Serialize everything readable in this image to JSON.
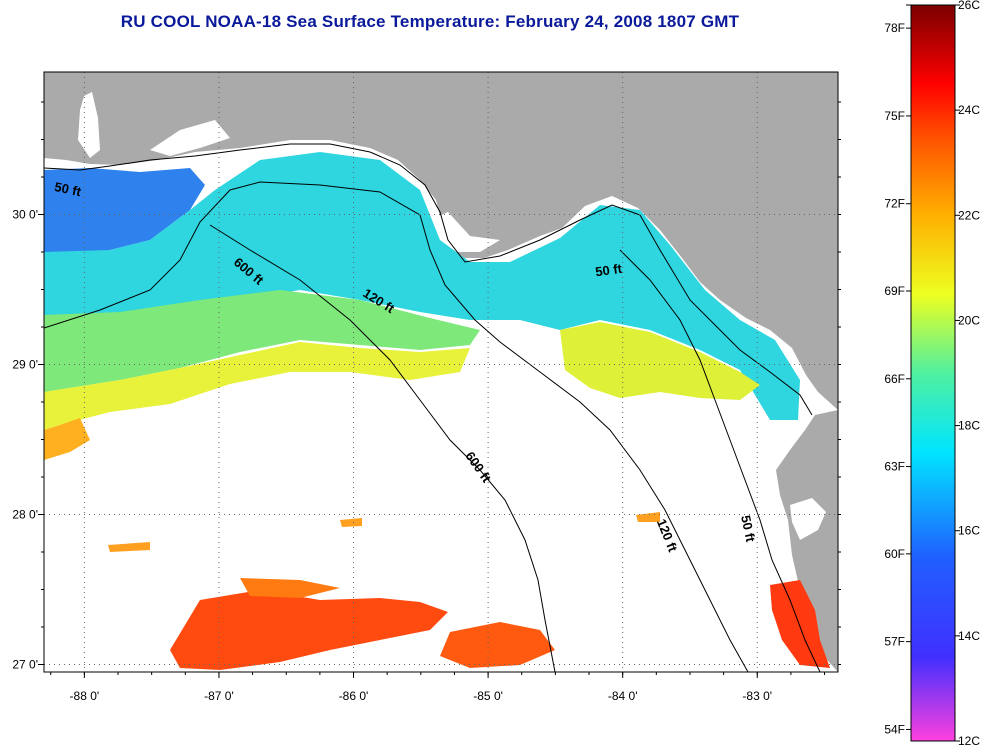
{
  "title": "RU COOL  NOAA-18  Sea Surface Temperature:  February 24, 2008 1807 GMT",
  "map": {
    "lon_range": [
      -88.3,
      -82.4
    ],
    "lat_range": [
      26.95,
      30.95
    ],
    "x_ticks": [
      {
        "value": -88,
        "label": "-88 0'"
      },
      {
        "value": -87,
        "label": "-87 0'"
      },
      {
        "value": -86,
        "label": "-86 0'"
      },
      {
        "value": -85,
        "label": "-85 0'"
      },
      {
        "value": -84,
        "label": "-84 0'"
      },
      {
        "value": -83,
        "label": "-83 0'"
      }
    ],
    "y_ticks": [
      {
        "value": 30,
        "label": "30 0'"
      },
      {
        "value": 29,
        "label": "29 0'"
      },
      {
        "value": 28,
        "label": "28 0'"
      },
      {
        "value": 27,
        "label": "27 0'"
      }
    ],
    "grid": "dotted",
    "colors": {
      "land": "#aaaaaa",
      "no_data": "#ffffff",
      "contour": "#000000"
    },
    "contour_labels": [
      {
        "text": "50 ft",
        "lon": -88.13,
        "lat": 30.14,
        "angle": 12
      },
      {
        "text": "600 ft",
        "lon": -86.8,
        "lat": 29.6,
        "angle": 40
      },
      {
        "text": "120 ft",
        "lon": -85.83,
        "lat": 29.4,
        "angle": 32
      },
      {
        "text": "50 ft",
        "lon": -84.1,
        "lat": 29.6,
        "angle": -8
      },
      {
        "text": "600 ft",
        "lon": -85.1,
        "lat": 28.3,
        "angle": 55
      },
      {
        "text": "120 ft",
        "lon": -83.7,
        "lat": 27.85,
        "angle": 68
      },
      {
        "text": "50 ft",
        "lon": -83.1,
        "lat": 27.9,
        "angle": 78
      }
    ]
  },
  "colorbar": {
    "left_labels": [
      {
        "value": 26,
        "label": ""
      },
      {
        "value": 25.56,
        "label": "78F"
      },
      {
        "value": 23.89,
        "label": "75F"
      },
      {
        "value": 22.22,
        "label": "72F"
      },
      {
        "value": 20.56,
        "label": "69F"
      },
      {
        "value": 18.89,
        "label": "66F"
      },
      {
        "value": 17.22,
        "label": "63F"
      },
      {
        "value": 15.56,
        "label": "60F"
      },
      {
        "value": 13.89,
        "label": "57F"
      },
      {
        "value": 12.22,
        "label": "54F"
      }
    ],
    "right_labels": [
      {
        "value": 26,
        "label": "26C"
      },
      {
        "value": 24,
        "label": "24C"
      },
      {
        "value": 22,
        "label": "22C"
      },
      {
        "value": 20,
        "label": "20C"
      },
      {
        "value": 18,
        "label": "18C"
      },
      {
        "value": 16,
        "label": "16C"
      },
      {
        "value": 14,
        "label": "14C"
      },
      {
        "value": 12,
        "label": "12C"
      }
    ],
    "range": [
      12,
      26
    ],
    "stops": [
      {
        "value": 12,
        "color": "#ff40dd"
      },
      {
        "value": 13.6,
        "color": "#4030ff"
      },
      {
        "value": 15.5,
        "color": "#2060ff"
      },
      {
        "value": 17.5,
        "color": "#00e5ff"
      },
      {
        "value": 19,
        "color": "#50f0a0"
      },
      {
        "value": 20.5,
        "color": "#eeff20"
      },
      {
        "value": 22,
        "color": "#ffb000"
      },
      {
        "value": 23.5,
        "color": "#ff5000"
      },
      {
        "value": 24.5,
        "color": "#ff0000"
      },
      {
        "value": 26,
        "color": "#7a0000"
      }
    ]
  }
}
